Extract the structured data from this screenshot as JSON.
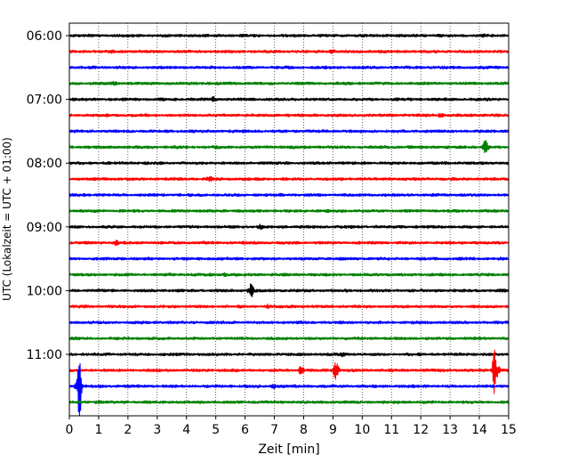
{
  "chart_data": {
    "type": "line",
    "title": "",
    "xlabel": "Zeit  [min]",
    "ylabel": "UTC (Lokalzeit = UTC + 01:00)",
    "xlim": [
      0,
      15
    ],
    "xticks": [
      0,
      1,
      2,
      3,
      4,
      5,
      6,
      7,
      8,
      9,
      10,
      11,
      12,
      13,
      14,
      15
    ],
    "y_tick_labels": [
      "06:00",
      "07:00",
      "08:00",
      "09:00",
      "10:00",
      "11:00"
    ],
    "trace_start_times": [
      "06:00",
      "06:15",
      "06:30",
      "06:45",
      "07:00",
      "07:15",
      "07:30",
      "07:45",
      "08:00",
      "08:15",
      "08:30",
      "08:45",
      "09:00",
      "09:15",
      "09:30",
      "09:45",
      "10:00",
      "10:15",
      "10:30",
      "10:45",
      "11:00",
      "11:15",
      "11:30",
      "11:45"
    ],
    "trace_colors": [
      "#000000",
      "#ff0000",
      "#0000ff",
      "#008000"
    ],
    "grid": "vertical dotted",
    "events": [
      {
        "trace_start": "06:00",
        "time_min": 14.2,
        "amplitude": 0.3
      },
      {
        "trace_start": "06:15",
        "time_min": 9.0,
        "amplitude": 0.25
      },
      {
        "trace_start": "06:45",
        "time_min": 1.5,
        "amplitude": 0.35
      },
      {
        "trace_start": "07:00",
        "time_min": 4.9,
        "amplitude": 0.45
      },
      {
        "trace_start": "07:15",
        "time_min": 12.7,
        "amplitude": 0.45
      },
      {
        "trace_start": "07:45",
        "time_min": 14.2,
        "amplitude": 1.6
      },
      {
        "trace_start": "08:15",
        "time_min": 4.8,
        "amplitude": 0.3
      },
      {
        "trace_start": "09:00",
        "time_min": 6.5,
        "amplitude": 0.4
      },
      {
        "trace_start": "09:15",
        "time_min": 1.6,
        "amplitude": 0.35
      },
      {
        "trace_start": "09:45",
        "time_min": 5.3,
        "amplitude": 0.35
      },
      {
        "trace_start": "10:00",
        "time_min": 6.2,
        "amplitude": 1.5
      },
      {
        "trace_start": "10:15",
        "time_min": 6.8,
        "amplitude": 0.35
      },
      {
        "trace_start": "11:00",
        "time_min": 9.3,
        "amplitude": 0.5
      },
      {
        "trace_start": "11:15",
        "time_min": 9.1,
        "amplitude": 2.0
      },
      {
        "trace_start": "11:15",
        "time_min": 7.9,
        "amplitude": 0.8
      },
      {
        "trace_start": "11:15",
        "time_min": 14.6,
        "amplitude": 1.8
      },
      {
        "trace_start": "11:15",
        "time_min": 14.5,
        "amplitude": 6.0
      },
      {
        "trace_start": "11:30",
        "time_min": 0.3,
        "amplitude": 1.8
      },
      {
        "trace_start": "11:30",
        "time_min": 0.35,
        "amplitude": 10.0
      },
      {
        "trace_start": "11:30",
        "time_min": 7.0,
        "amplitude": 0.4
      },
      {
        "trace_start": "11:45",
        "time_min": 1.0,
        "amplitude": 0.3
      }
    ]
  }
}
